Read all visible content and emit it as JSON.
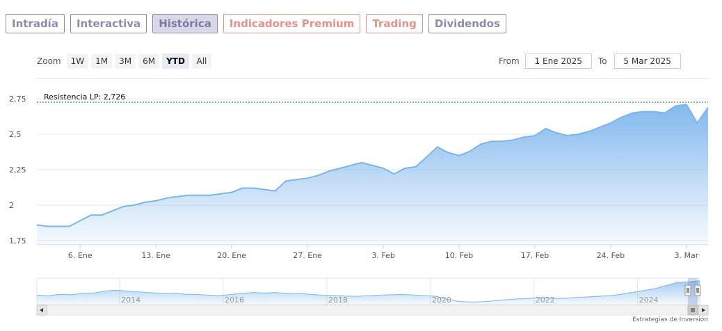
{
  "tabs": [
    {
      "label": "Intradía",
      "style": "normal"
    },
    {
      "label": "Interactiva",
      "style": "normal"
    },
    {
      "label": "Histórica",
      "style": "active"
    },
    {
      "label": "Indicadores Premium",
      "style": "warm"
    },
    {
      "label": "Trading",
      "style": "warm"
    },
    {
      "label": "Dividendos",
      "style": "normal"
    }
  ],
  "zoom": {
    "label": "Zoom",
    "buttons": [
      "1W",
      "1M",
      "3M",
      "6M",
      "YTD",
      "All"
    ],
    "selected": "YTD"
  },
  "range": {
    "from_label": "From",
    "from_value": "1 Ene 2025",
    "to_label": "To",
    "to_value": "5 Mar 2025"
  },
  "credit": "Estrategias de Inversión",
  "chart_data": {
    "type": "area",
    "y_ticks": [
      {
        "value": 1.75,
        "label": "1,75"
      },
      {
        "value": 2.0,
        "label": "2"
      },
      {
        "value": 2.25,
        "label": "2,25"
      },
      {
        "value": 2.5,
        "label": "2,5"
      },
      {
        "value": 2.75,
        "label": "2,75"
      }
    ],
    "ylim": [
      1.72,
      2.78
    ],
    "x_ticks": [
      "6. Ene",
      "13. Ene",
      "20. Ene",
      "27. Ene",
      "3. Feb",
      "10. Feb",
      "17. Feb",
      "24. Feb",
      "3. Mar"
    ],
    "x_tick_dates": [
      "2025-01-06",
      "2025-01-13",
      "2025-01-20",
      "2025-01-27",
      "2025-02-03",
      "2025-02-10",
      "2025-02-17",
      "2025-02-24",
      "2025-03-03"
    ],
    "xlim": [
      "2025-01-02",
      "2025-03-05"
    ],
    "grid": true,
    "color": "#7cb5ec",
    "series": [
      {
        "x": [
          "2025-01-02",
          "2025-01-03",
          "2025-01-04",
          "2025-01-05",
          "2025-01-06",
          "2025-01-07",
          "2025-01-08",
          "2025-01-09",
          "2025-01-10",
          "2025-01-11",
          "2025-01-12",
          "2025-01-13",
          "2025-01-14",
          "2025-01-15",
          "2025-01-16",
          "2025-01-17",
          "2025-01-18",
          "2025-01-19",
          "2025-01-20",
          "2025-01-21",
          "2025-01-22",
          "2025-01-23",
          "2025-01-24",
          "2025-01-25",
          "2025-01-26",
          "2025-01-27",
          "2025-01-28",
          "2025-01-29",
          "2025-01-30",
          "2025-01-31",
          "2025-02-01",
          "2025-02-02",
          "2025-02-03",
          "2025-02-04",
          "2025-02-05",
          "2025-02-06",
          "2025-02-07",
          "2025-02-08",
          "2025-02-09",
          "2025-02-10",
          "2025-02-11",
          "2025-02-12",
          "2025-02-13",
          "2025-02-14",
          "2025-02-15",
          "2025-02-16",
          "2025-02-17",
          "2025-02-18",
          "2025-02-19",
          "2025-02-20",
          "2025-02-21",
          "2025-02-22",
          "2025-02-23",
          "2025-02-24",
          "2025-02-25",
          "2025-02-26",
          "2025-02-27",
          "2025-02-28",
          "2025-03-01",
          "2025-03-02",
          "2025-03-03",
          "2025-03-04",
          "2025-03-05"
        ],
        "y": [
          1.86,
          1.85,
          1.85,
          1.85,
          1.89,
          1.93,
          1.93,
          1.96,
          1.99,
          2.0,
          2.02,
          2.03,
          2.05,
          2.06,
          2.07,
          2.07,
          2.07,
          2.08,
          2.09,
          2.12,
          2.12,
          2.11,
          2.1,
          2.17,
          2.18,
          2.19,
          2.21,
          2.24,
          2.26,
          2.28,
          2.3,
          2.28,
          2.26,
          2.22,
          2.26,
          2.27,
          2.34,
          2.41,
          2.37,
          2.35,
          2.38,
          2.43,
          2.45,
          2.45,
          2.46,
          2.48,
          2.49,
          2.54,
          2.51,
          2.49,
          2.5,
          2.52,
          2.55,
          2.58,
          2.62,
          2.65,
          2.66,
          2.66,
          2.65,
          2.7,
          2.71,
          2.58,
          2.69
        ]
      }
    ],
    "annotations": [
      {
        "label": "Resistencia LP: 2,726",
        "value": 2.726
      }
    ],
    "navigator": {
      "year_labels": [
        "2014",
        "2016",
        "2018",
        "2020",
        "2022",
        "2024"
      ],
      "year_values": [
        2014,
        2016,
        2018,
        2020,
        2022,
        2024
      ],
      "range": [
        2012.4,
        2025.2
      ],
      "ylim": [
        0.8,
        2.9
      ],
      "values": [
        1.55,
        1.5,
        1.62,
        1.58,
        1.7,
        1.72,
        1.88,
        1.95,
        1.86,
        1.8,
        1.74,
        1.7,
        1.7,
        1.62,
        1.6,
        1.55,
        1.52,
        1.6,
        1.7,
        1.76,
        1.72,
        1.75,
        1.66,
        1.7,
        1.6,
        1.55,
        1.52,
        1.48,
        1.45,
        1.5,
        1.55,
        1.58,
        1.6,
        1.56,
        1.5,
        1.45,
        1.2,
        1.05,
        1.0,
        1.02,
        1.1,
        1.18,
        1.24,
        1.28,
        1.35,
        1.3,
        1.28,
        1.35,
        1.4,
        1.45,
        1.5,
        1.6,
        1.75,
        1.9,
        2.05,
        2.3,
        2.55,
        2.6,
        2.7
      ]
    }
  }
}
